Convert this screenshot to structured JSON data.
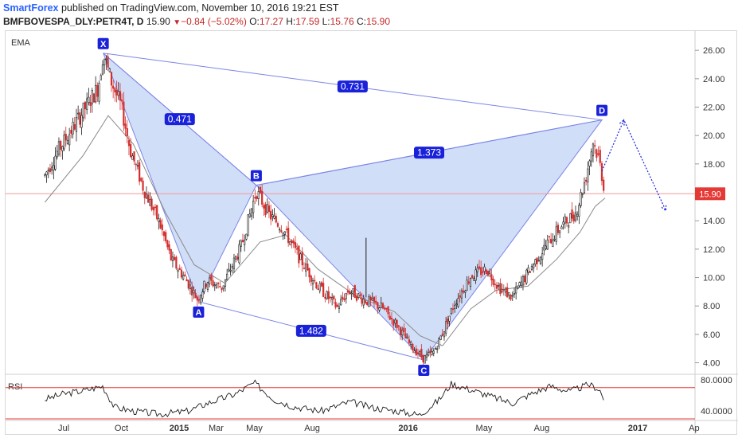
{
  "header": {
    "brand": "SmartForex",
    "published": " published on TradingView.com, November 10, 2016 19:21 EST",
    "symbol": "BMFBOVESPA_DLY:PETR4T, D",
    "last": "15.90",
    "change": "−0.84 (−5.02%)",
    "o_label": "O:",
    "o_value": "17.27",
    "h_label": "H:",
    "h_value": "17.59",
    "l_label": "L:",
    "l_value": "15.76",
    "c_label": "C:",
    "c_value": "15.90"
  },
  "indicators": {
    "ema_label": "EMA",
    "rsi_label": "RSI"
  },
  "colors": {
    "up": "#1b1b1b",
    "down": "#d32f2f",
    "pattern_fill": "#c9d8f6",
    "pattern_line": "#7b86e6",
    "label_bg": "#1a22d9",
    "price_line": "#ef9a9a",
    "price_tag": "#e53935",
    "rsi_line": "#e53935"
  },
  "chart_data": {
    "type": "line",
    "title": "",
    "price_axis": {
      "ticks": [
        "4.00",
        "6.00",
        "8.00",
        "10.00",
        "12.00",
        "14.00",
        "16.00",
        "18.00",
        "20.00",
        "22.00",
        "24.00",
        "26.00"
      ],
      "ylim": [
        3.3,
        27.3
      ]
    },
    "time_axis": {
      "ticks": [
        "Jul",
        "Oct",
        "2015",
        "Mar",
        "May",
        "Aug",
        "2016",
        "May",
        "Aug",
        "2017",
        "Ap"
      ]
    },
    "last_price": {
      "value": 15.9,
      "label": "15.90"
    },
    "price_path": [
      [
        "2014-06-01",
        17.2
      ],
      [
        "2014-06-20",
        18.8
      ],
      [
        "2014-07-15",
        20.5
      ],
      [
        "2014-08-05",
        22.0
      ],
      [
        "2014-08-25",
        23.4
      ],
      [
        "2014-09-02",
        25.8
      ],
      [
        "2014-09-15",
        23.8
      ],
      [
        "2014-10-01",
        22.0
      ],
      [
        "2014-10-15",
        19.0
      ],
      [
        "2014-11-05",
        16.3
      ],
      [
        "2014-12-01",
        13.8
      ],
      [
        "2014-12-20",
        11.2
      ],
      [
        "2015-01-10",
        10.0
      ],
      [
        "2015-01-30",
        8.5
      ],
      [
        "2015-02-15",
        9.8
      ],
      [
        "2015-03-10",
        9.3
      ],
      [
        "2015-04-10",
        12.2
      ],
      [
        "2015-05-04",
        16.1
      ],
      [
        "2015-05-25",
        14.4
      ],
      [
        "2015-06-15",
        13.5
      ],
      [
        "2015-07-10",
        11.5
      ],
      [
        "2015-08-10",
        9.4
      ],
      [
        "2015-09-10",
        7.9
      ],
      [
        "2015-09-28",
        9.1
      ],
      [
        "2015-10-20",
        8.5
      ],
      [
        "2015-11-20",
        7.9
      ],
      [
        "2015-12-15",
        6.6
      ],
      [
        "2016-01-05",
        5.2
      ],
      [
        "2016-01-26",
        4.3
      ],
      [
        "2016-02-10",
        4.7
      ],
      [
        "2016-02-25",
        6.1
      ],
      [
        "2016-03-15",
        8.2
      ],
      [
        "2016-04-10",
        10.1
      ],
      [
        "2016-05-05",
        10.6
      ],
      [
        "2016-05-25",
        9.3
      ],
      [
        "2016-06-15",
        8.6
      ],
      [
        "2016-07-15",
        10.7
      ],
      [
        "2016-08-10",
        12.4
      ],
      [
        "2016-09-01",
        13.6
      ],
      [
        "2016-09-25",
        14.6
      ],
      [
        "2016-10-10",
        17.0
      ],
      [
        "2016-10-22",
        19.6
      ],
      [
        "2016-11-01",
        18.2
      ],
      [
        "2016-11-10",
        15.9
      ]
    ],
    "ema_path": [
      [
        "2014-06-01",
        15.3
      ],
      [
        "2014-08-01",
        18.6
      ],
      [
        "2014-09-10",
        21.4
      ],
      [
        "2014-10-20",
        19.4
      ],
      [
        "2014-12-10",
        14.6
      ],
      [
        "2015-01-25",
        10.9
      ],
      [
        "2015-03-15",
        9.6
      ],
      [
        "2015-05-10",
        12.5
      ],
      [
        "2015-06-20",
        13.0
      ],
      [
        "2015-08-10",
        10.6
      ],
      [
        "2015-10-10",
        8.7
      ],
      [
        "2015-12-10",
        7.6
      ],
      [
        "2016-01-20",
        5.9
      ],
      [
        "2016-02-25",
        5.2
      ],
      [
        "2016-04-10",
        7.8
      ],
      [
        "2016-05-20",
        9.1
      ],
      [
        "2016-07-10",
        9.4
      ],
      [
        "2016-08-25",
        11.3
      ],
      [
        "2016-10-01",
        13.2
      ],
      [
        "2016-10-25",
        15.0
      ],
      [
        "2016-11-10",
        15.6
      ]
    ],
    "pattern": {
      "name": "XABCD",
      "points": [
        {
          "label": "X",
          "date": "2014-09-02",
          "price": 25.8
        },
        {
          "label": "A",
          "date": "2015-02-01",
          "price": 8.3
        },
        {
          "label": "B",
          "date": "2015-05-04",
          "price": 16.5
        },
        {
          "label": "C",
          "date": "2016-01-26",
          "price": 4.2
        },
        {
          "label": "D",
          "date": "2016-11-05",
          "price": 21.1
        }
      ],
      "ratios": [
        {
          "label": "0.471",
          "from": "X",
          "to": "B"
        },
        {
          "label": "0.731",
          "from": "X",
          "to": "D"
        },
        {
          "label": "1.373",
          "from": "B",
          "to": "D"
        },
        {
          "label": "1.482",
          "from": "A",
          "to": "C"
        }
      ]
    },
    "projection": [
      {
        "date": "2016-11-05",
        "price": 17.5
      },
      {
        "date": "2016-12-10",
        "price": 21.1
      },
      {
        "date": "2017-02-15",
        "price": 14.7
      }
    ],
    "rsi": {
      "ticks": [
        "80.0000",
        "40.0000"
      ],
      "ylim": [
        30,
        85
      ],
      "levels": [
        70,
        30
      ],
      "path": [
        [
          "2014-06-01",
          55
        ],
        [
          "2014-07-01",
          62
        ],
        [
          "2014-08-01",
          66
        ],
        [
          "2014-09-01",
          72
        ],
        [
          "2014-09-20",
          45
        ],
        [
          "2014-10-20",
          40
        ],
        [
          "2014-12-01",
          36
        ],
        [
          "2015-01-15",
          40
        ],
        [
          "2015-02-15",
          50
        ],
        [
          "2015-04-01",
          62
        ],
        [
          "2015-05-01",
          76
        ],
        [
          "2015-06-01",
          55
        ],
        [
          "2015-07-01",
          46
        ],
        [
          "2015-08-15",
          40
        ],
        [
          "2015-10-01",
          52
        ],
        [
          "2015-11-01",
          45
        ],
        [
          "2015-12-15",
          40
        ],
        [
          "2016-01-20",
          35
        ],
        [
          "2016-02-20",
          55
        ],
        [
          "2016-03-10",
          75
        ],
        [
          "2016-04-15",
          66
        ],
        [
          "2016-05-15",
          58
        ],
        [
          "2016-06-15",
          50
        ],
        [
          "2016-07-15",
          62
        ],
        [
          "2016-08-15",
          72
        ],
        [
          "2016-09-15",
          65
        ],
        [
          "2016-10-15",
          74
        ],
        [
          "2016-11-01",
          68
        ],
        [
          "2016-11-10",
          50
        ]
      ]
    }
  }
}
